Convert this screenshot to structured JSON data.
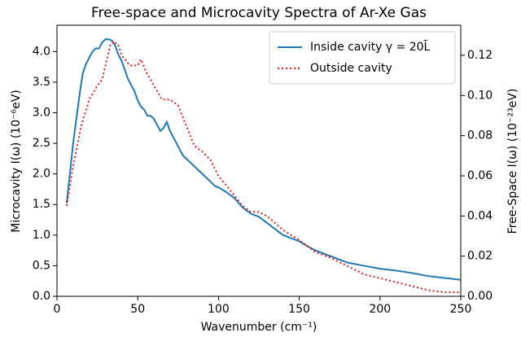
{
  "chart_data": {
    "type": "line",
    "title": "Free-space and Microcavity Spectra of Ar-Xe Gas",
    "xlabel": "Wavenumber (cm⁻¹)",
    "ylabel": "Microcavity I(ω) (10⁻⁶eV)",
    "y2label": "Free-Space I(ω) (10⁻²³eV)",
    "xlim": [
      0,
      250
    ],
    "xticks": [
      0,
      50,
      100,
      150,
      200,
      250
    ],
    "ylim": [
      0,
      4.43
    ],
    "yticks": [
      {
        "value": 0,
        "label": "0.0"
      },
      0.5,
      {
        "value": 1,
        "label": "1.0"
      },
      1.5,
      {
        "value": 2,
        "label": "2.0"
      },
      2.5,
      {
        "value": 3,
        "label": "3.0"
      },
      3.5,
      {
        "value": 4,
        "label": "4.0"
      }
    ],
    "y2lim": [
      0,
      0.135
    ],
    "y2ticks": [
      {
        "value": 0,
        "label": "0.00"
      },
      {
        "value": 0.02,
        "label": "0.02"
      },
      {
        "value": 0.04,
        "label": "0.04"
      },
      {
        "value": 0.06,
        "label": "0.06"
      },
      {
        "value": 0.08,
        "label": "0.08"
      },
      {
        "value": 0.1,
        "label": "0.10"
      },
      {
        "value": 0.12,
        "label": "0.12"
      }
    ],
    "legend": "upper right",
    "series": [
      {
        "name": "Inside cavity γ = 20L̄",
        "color": "#1f77b4",
        "style": "solid",
        "x": [
          6,
          8,
          10,
          12,
          14,
          16,
          18,
          20,
          22,
          24,
          26,
          28,
          30,
          32,
          34,
          36,
          38,
          40,
          42,
          44,
          46,
          48,
          50,
          52,
          54,
          56,
          58,
          60,
          62,
          64,
          66,
          68,
          70,
          72,
          74,
          76,
          78,
          80,
          82,
          84,
          86,
          88,
          90,
          92,
          94,
          96,
          98,
          100,
          105,
          110,
          115,
          120,
          125,
          130,
          135,
          140,
          145,
          150,
          155,
          160,
          165,
          170,
          175,
          180,
          190,
          200,
          210,
          220,
          230,
          240,
          250
        ],
        "values": [
          1.52,
          2.0,
          2.5,
          2.9,
          3.3,
          3.65,
          3.8,
          3.9,
          4.0,
          4.05,
          4.05,
          4.15,
          4.2,
          4.2,
          4.18,
          4.1,
          3.95,
          3.85,
          3.7,
          3.55,
          3.45,
          3.35,
          3.2,
          3.1,
          3.05,
          2.95,
          2.95,
          2.9,
          2.8,
          2.7,
          2.75,
          2.85,
          2.7,
          2.6,
          2.5,
          2.4,
          2.3,
          2.25,
          2.2,
          2.15,
          2.1,
          2.05,
          2.0,
          1.95,
          1.9,
          1.85,
          1.8,
          1.78,
          1.7,
          1.6,
          1.45,
          1.35,
          1.3,
          1.2,
          1.1,
          1.0,
          0.95,
          0.9,
          0.82,
          0.75,
          0.7,
          0.65,
          0.6,
          0.55,
          0.5,
          0.45,
          0.42,
          0.38,
          0.33,
          0.3,
          0.27
        ]
      },
      {
        "name": "Outside cavity",
        "color": "#e41a1c",
        "style": "dotted",
        "axis": "y2",
        "x": [
          6,
          10,
          15,
          20,
          25,
          28,
          30,
          33,
          35,
          38,
          40,
          45,
          50,
          52,
          55,
          60,
          65,
          70,
          75,
          80,
          85,
          90,
          95,
          100,
          105,
          110,
          115,
          120,
          125,
          130,
          140,
          150,
          160,
          170,
          180,
          190,
          200,
          210,
          220,
          230,
          240,
          250
        ],
        "values": [
          0.045,
          0.065,
          0.085,
          0.098,
          0.105,
          0.108,
          0.115,
          0.125,
          0.127,
          0.125,
          0.12,
          0.115,
          0.115,
          0.118,
          0.112,
          0.105,
          0.098,
          0.098,
          0.095,
          0.085,
          0.075,
          0.072,
          0.068,
          0.06,
          0.055,
          0.05,
          0.045,
          0.042,
          0.042,
          0.04,
          0.033,
          0.028,
          0.022,
          0.019,
          0.015,
          0.011,
          0.009,
          0.007,
          0.005,
          0.003,
          0.002,
          0.002
        ]
      }
    ]
  }
}
